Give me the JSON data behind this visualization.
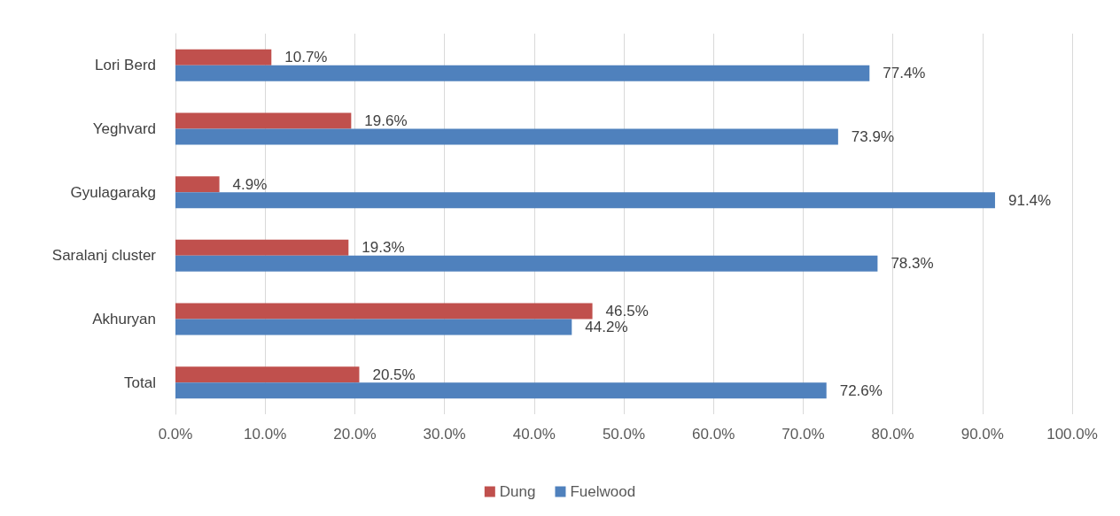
{
  "chart_data": {
    "type": "bar",
    "orientation": "horizontal",
    "categories": [
      "Lori Berd",
      "Yeghvard",
      "Gyulagarakg",
      "Saralanj cluster",
      "Akhuryan",
      "Total"
    ],
    "series": [
      {
        "name": "Dung",
        "color": "#c0504d",
        "values": [
          10.7,
          19.6,
          4.9,
          19.3,
          46.5,
          20.5
        ],
        "value_labels": [
          "10.7%",
          "19.6%",
          "4.9%",
          "19.3%",
          "46.5%",
          "20.5%"
        ]
      },
      {
        "name": "Fuelwood",
        "color": "#4f81bd",
        "values": [
          77.4,
          73.9,
          91.4,
          78.3,
          44.2,
          72.6
        ],
        "value_labels": [
          "77.4%",
          "73.9%",
          "91.4%",
          "78.3%",
          "44.2%",
          "72.6%"
        ]
      }
    ],
    "xlim": [
      0,
      100
    ],
    "xticks": [
      {
        "value": 0,
        "label": "0.0%"
      },
      {
        "value": 10,
        "label": "10.0%"
      },
      {
        "value": 20,
        "label": "20.0%"
      },
      {
        "value": 30,
        "label": "30.0%"
      },
      {
        "value": 40,
        "label": "40.0%"
      },
      {
        "value": 50,
        "label": "50.0%"
      },
      {
        "value": 60,
        "label": "60.0%"
      },
      {
        "value": 70,
        "label": "70.0%"
      },
      {
        "value": 80,
        "label": "80.0%"
      },
      {
        "value": 90,
        "label": "90.0%"
      },
      {
        "value": 100,
        "label": "100.0%"
      }
    ],
    "grid": "x",
    "legend": "bottom"
  }
}
